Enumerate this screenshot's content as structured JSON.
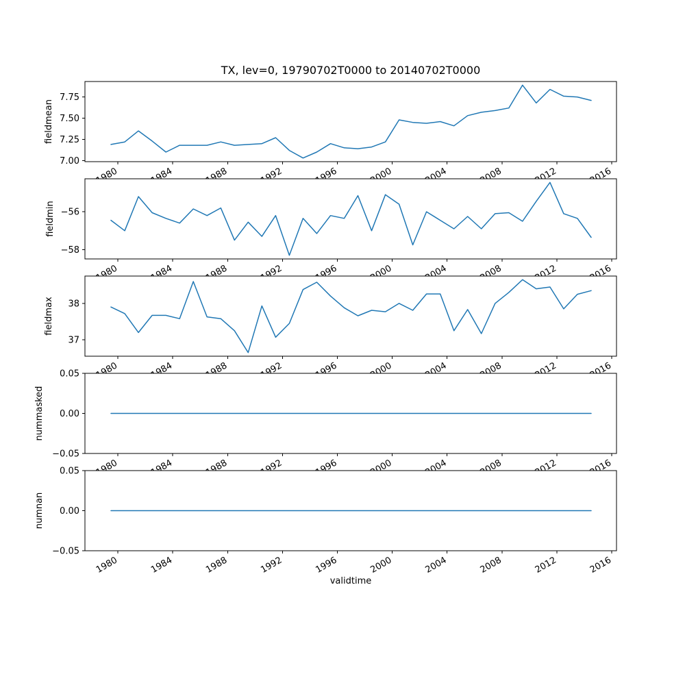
{
  "figure": {
    "colors": {
      "line": "#1f77b4",
      "text": "#000000",
      "frame": "#000000",
      "background": "#ffffff"
    }
  },
  "chart_data": {
    "type": "line",
    "title": "TX, lev=0, 19790702T0000 to 20140702T0000",
    "xlabel": "validtime",
    "grid": false,
    "legend": "none",
    "line_color": "#1f77b4",
    "x": [
      1979.5,
      1980.5,
      1981.5,
      1982.5,
      1983.5,
      1984.5,
      1985.5,
      1986.5,
      1987.5,
      1988.5,
      1989.5,
      1990.5,
      1991.5,
      1992.5,
      1993.5,
      1994.5,
      1995.5,
      1996.5,
      1997.5,
      1998.5,
      1999.5,
      2000.5,
      2001.5,
      2002.5,
      2003.5,
      2004.5,
      2005.5,
      2006.5,
      2007.5,
      2008.5,
      2009.5,
      2010.5,
      2011.5,
      2012.5,
      2013.5,
      2014.5
    ],
    "x_ticks": [
      1980,
      1984,
      1988,
      1992,
      1996,
      2000,
      2004,
      2008,
      2012,
      2016
    ],
    "x_tick_labels": [
      "1980",
      "1984",
      "1988",
      "1992",
      "1996",
      "2000",
      "2004",
      "2008",
      "2012",
      "2016"
    ],
    "x_tick_rotation_deg": 30,
    "xlim": [
      1977.6,
      2016.35
    ],
    "subplots": [
      {
        "name": "fieldmean",
        "ylabel": "fieldmean",
        "ylim": [
          6.987,
          7.933
        ],
        "yticks": [
          7.0,
          7.25,
          7.5,
          7.75
        ],
        "ytick_labels": [
          "7.00",
          "7.25",
          "7.50",
          "7.75"
        ],
        "values": [
          7.19,
          7.22,
          7.35,
          7.23,
          7.1,
          7.18,
          7.18,
          7.18,
          7.22,
          7.18,
          7.19,
          7.2,
          7.27,
          7.12,
          7.03,
          7.1,
          7.2,
          7.15,
          7.14,
          7.16,
          7.22,
          7.48,
          7.45,
          7.44,
          7.46,
          7.41,
          7.53,
          7.57,
          7.59,
          7.62,
          7.89,
          7.68,
          7.84,
          7.76,
          7.75,
          7.71
        ]
      },
      {
        "name": "fieldmin",
        "ylabel": "fieldmin",
        "ylim": [
          -58.49,
          -54.26
        ],
        "yticks": [
          -56,
          -58
        ],
        "ytick_labels": [
          "−56",
          "−58"
        ],
        "values": [
          -56.45,
          -57.0,
          -55.2,
          -56.05,
          -56.35,
          -56.6,
          -55.85,
          -56.2,
          -55.8,
          -57.5,
          -56.55,
          -57.3,
          -56.2,
          -58.3,
          -56.35,
          -57.15,
          -56.2,
          -56.35,
          -55.15,
          -57.0,
          -55.1,
          -55.6,
          -57.75,
          -56.0,
          -56.45,
          -56.9,
          -56.25,
          -56.9,
          -56.1,
          -56.05,
          -56.5,
          -55.45,
          -54.45,
          -56.1,
          -56.35,
          -57.35
        ]
      },
      {
        "name": "fieldmax",
        "ylabel": "fieldmax",
        "ylim": [
          36.55,
          38.75
        ],
        "yticks": [
          37,
          38
        ],
        "ytick_labels": [
          "37",
          "38"
        ],
        "values": [
          37.9,
          37.72,
          37.2,
          37.67,
          37.67,
          37.58,
          38.6,
          37.63,
          37.58,
          37.25,
          36.65,
          37.93,
          37.07,
          37.45,
          38.38,
          38.58,
          38.2,
          37.88,
          37.66,
          37.81,
          37.77,
          38.0,
          37.81,
          38.26,
          38.26,
          37.25,
          37.83,
          37.17,
          38.0,
          38.3,
          38.65,
          38.4,
          38.45,
          37.85,
          38.25,
          38.35
        ]
      },
      {
        "name": "nummasked",
        "ylabel": "nummasked",
        "ylim": [
          -0.05,
          0.05
        ],
        "yticks": [
          0.05,
          0.0,
          -0.05
        ],
        "ytick_labels": [
          "0.05",
          "0.00",
          "−0.05"
        ],
        "values": [
          0,
          0,
          0,
          0,
          0,
          0,
          0,
          0,
          0,
          0,
          0,
          0,
          0,
          0,
          0,
          0,
          0,
          0,
          0,
          0,
          0,
          0,
          0,
          0,
          0,
          0,
          0,
          0,
          0,
          0,
          0,
          0,
          0,
          0,
          0,
          0
        ]
      },
      {
        "name": "numnan",
        "ylabel": "numnan",
        "ylim": [
          -0.05,
          0.05
        ],
        "yticks": [
          0.05,
          0.0,
          -0.05
        ],
        "ytick_labels": [
          "0.05",
          "0.00",
          "−0.05"
        ],
        "values": [
          0,
          0,
          0,
          0,
          0,
          0,
          0,
          0,
          0,
          0,
          0,
          0,
          0,
          0,
          0,
          0,
          0,
          0,
          0,
          0,
          0,
          0,
          0,
          0,
          0,
          0,
          0,
          0,
          0,
          0,
          0,
          0,
          0,
          0,
          0,
          0
        ]
      }
    ]
  }
}
